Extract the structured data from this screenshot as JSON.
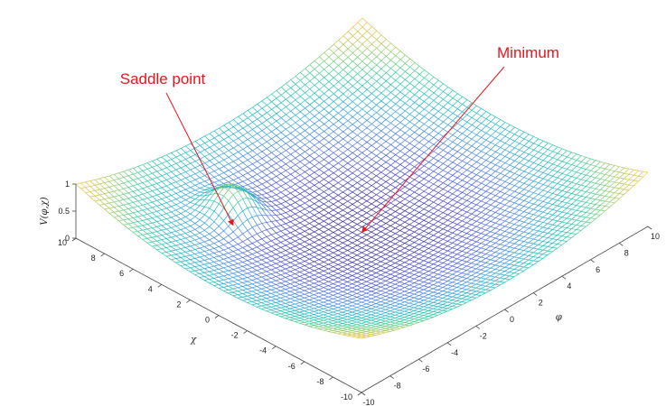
{
  "chart_data": {
    "type": "surface",
    "title": "",
    "xlabel": "φ",
    "ylabel": "χ",
    "zlabel": "V(φ,χ)",
    "xlim": [
      -10,
      10
    ],
    "ylim": [
      -10,
      10
    ],
    "zlim": [
      0,
      1
    ],
    "x_ticks": [
      -10,
      -8,
      -6,
      -4,
      -2,
      0,
      2,
      4,
      6,
      8,
      10
    ],
    "y_ticks": [
      -10,
      -8,
      -6,
      -4,
      -2,
      0,
      2,
      4,
      6,
      8,
      10
    ],
    "z_ticks": [
      "0",
      "0.5",
      "1"
    ],
    "grid_n": 61,
    "surface": {
      "bowl_coefficient": 0.005,
      "bump": {
        "center_x": -4,
        "center_y": 5,
        "height": 0.55,
        "width": 1.0
      }
    },
    "colormap": [
      "#3b2d9c",
      "#4a52d8",
      "#4d7be8",
      "#37a4e0",
      "#1fbfc0",
      "#3fcf9a",
      "#8fd06a",
      "#d6c24a",
      "#f2c84b"
    ],
    "annotations": [
      {
        "text": "Saddle point",
        "x": -4,
        "y": 5,
        "z": 0.03,
        "color": "#e8141e"
      },
      {
        "text": "Minimum",
        "x": 0,
        "y": 0,
        "z": 0.0,
        "color": "#e8141e"
      }
    ]
  }
}
